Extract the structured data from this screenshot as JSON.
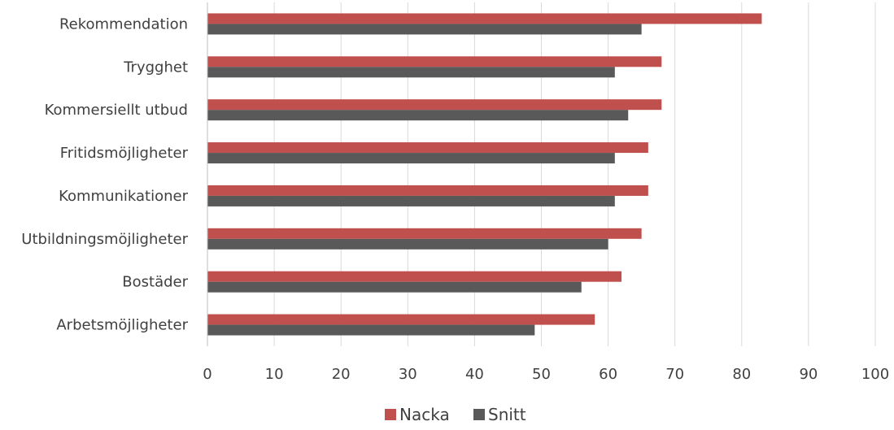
{
  "chart_data": {
    "type": "bar",
    "orientation": "horizontal",
    "title": "",
    "xlabel": "",
    "ylabel": "",
    "categories": [
      "Rekommendation",
      "Trygghet",
      "Kommersiellt utbud",
      "Fritidsmöjligheter",
      "Kommunikationer",
      "Utbildningsmöjligheter",
      "Bostäder",
      "Arbetsmöjligheter"
    ],
    "series": [
      {
        "name": "Nacka",
        "color": "#C0504D",
        "values": [
          83,
          68,
          68,
          66,
          66,
          65,
          62,
          58
        ]
      },
      {
        "name": "Snitt",
        "color": "#595959",
        "values": [
          65,
          61,
          63,
          61,
          61,
          60,
          56,
          49
        ]
      }
    ],
    "xlim": [
      0,
      100
    ],
    "xticks": [
      "0",
      "10",
      "20",
      "30",
      "40",
      "50",
      "60",
      "70",
      "80",
      "90",
      "100"
    ],
    "grid": "vertical",
    "legend": "bottom"
  }
}
